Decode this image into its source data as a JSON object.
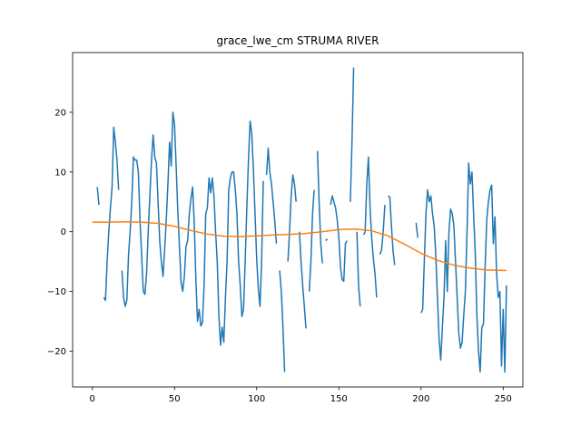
{
  "chart_data": {
    "type": "line",
    "title": "grace_lwe_cm STRUMA RIVER",
    "xlabel": "",
    "ylabel": "",
    "xlim": [
      -12,
      262
    ],
    "ylim": [
      -26,
      30
    ],
    "xticks": [
      0,
      50,
      100,
      150,
      200,
      250
    ],
    "yticks": [
      -20,
      -10,
      0,
      10,
      20
    ],
    "grid": false,
    "series": [
      {
        "color": "#1f77b4",
        "points": [
          [
            3,
            7.5
          ],
          [
            4,
            4.5
          ],
          null,
          [
            7,
            -11
          ],
          [
            8,
            -11.5
          ],
          [
            9,
            -5
          ],
          [
            10,
            0
          ],
          [
            11,
            4
          ],
          [
            12,
            7.5
          ],
          [
            13,
            17.5
          ],
          [
            14,
            15
          ],
          [
            15,
            12
          ],
          [
            16,
            7
          ],
          null,
          [
            18,
            -6.5
          ],
          [
            19,
            -11
          ],
          [
            20,
            -12.5
          ],
          [
            21,
            -11.5
          ],
          [
            22,
            -4
          ],
          [
            23,
            0
          ],
          [
            24,
            5
          ],
          [
            25,
            12.5
          ],
          [
            26,
            12
          ],
          [
            27,
            12
          ],
          [
            28,
            10
          ],
          [
            29,
            2
          ],
          [
            30,
            -4
          ],
          [
            31,
            -10
          ],
          [
            32,
            -10.5
          ],
          [
            33,
            -7
          ],
          [
            34,
            0
          ],
          [
            35,
            6
          ],
          [
            36,
            12
          ],
          [
            37,
            16.2
          ],
          [
            38,
            12.5
          ],
          [
            39,
            11.5
          ],
          [
            40,
            5
          ],
          [
            41,
            -1.5
          ],
          [
            42,
            -5
          ],
          [
            43,
            -7.5
          ],
          [
            44,
            -3
          ],
          [
            45,
            2
          ],
          [
            46,
            8
          ],
          [
            47,
            15
          ],
          [
            48,
            11
          ],
          [
            49,
            20
          ],
          [
            50,
            18
          ],
          [
            51,
            11
          ],
          [
            52,
            3.5
          ],
          [
            53,
            -2.5
          ],
          [
            54,
            -8.5
          ],
          [
            55,
            -10
          ],
          [
            56,
            -7.5
          ],
          [
            57,
            -2.5
          ],
          [
            58,
            -1.5
          ],
          [
            59,
            3
          ],
          [
            60,
            5.5
          ],
          [
            61,
            7.5
          ],
          [
            62,
            1.5
          ],
          [
            63,
            -8
          ],
          [
            64,
            -15
          ],
          [
            65,
            -13
          ],
          [
            66,
            -15.8
          ],
          [
            67,
            -15.2
          ],
          [
            68,
            -9
          ],
          [
            69,
            3
          ],
          [
            70,
            4
          ],
          [
            71,
            9
          ],
          [
            72,
            6.5
          ],
          [
            73,
            9
          ],
          [
            74,
            6
          ],
          [
            75,
            0
          ],
          [
            76,
            -5
          ],
          [
            77,
            -14
          ],
          [
            78,
            -19
          ],
          [
            79,
            -16
          ],
          [
            80,
            -18.5
          ],
          [
            81,
            -11
          ],
          [
            82,
            -5
          ],
          [
            83,
            7
          ],
          [
            84,
            9
          ],
          [
            85,
            10
          ],
          [
            86,
            10
          ],
          [
            87,
            7
          ],
          [
            88,
            3
          ],
          [
            89,
            -5
          ],
          [
            90,
            -9
          ],
          [
            91,
            -14.2
          ],
          [
            92,
            -13
          ],
          [
            93,
            -5
          ],
          [
            94,
            4
          ],
          [
            95,
            12
          ],
          [
            96,
            18.5
          ],
          [
            97,
            16.5
          ],
          [
            98,
            10.5
          ],
          [
            99,
            3
          ],
          [
            100,
            -4.5
          ],
          [
            101,
            -9.5
          ],
          [
            102,
            -12.5
          ],
          [
            103,
            -5
          ],
          [
            104,
            8.5
          ],
          null,
          [
            106,
            9.5
          ],
          [
            107,
            14
          ],
          [
            108,
            10
          ],
          [
            109,
            8
          ],
          [
            110,
            5
          ],
          [
            111,
            1.8
          ],
          [
            112,
            -2
          ],
          null,
          [
            114,
            -6.5
          ],
          [
            115,
            -10
          ],
          [
            116,
            -16
          ],
          [
            117,
            -23.5
          ],
          null,
          [
            119,
            -5
          ],
          [
            120,
            0
          ],
          [
            121,
            6
          ],
          [
            122,
            9.5
          ],
          [
            123,
            8
          ],
          [
            124,
            5
          ],
          null,
          [
            126,
            0
          ],
          [
            127,
            -5
          ],
          [
            128,
            -9
          ],
          [
            129,
            -12.5
          ],
          [
            130,
            -16.2
          ],
          null,
          [
            132,
            -10
          ],
          [
            133,
            -5
          ],
          [
            134,
            3
          ],
          [
            135,
            7
          ],
          null,
          [
            137,
            13.5
          ],
          [
            138,
            5
          ],
          [
            139,
            -2
          ],
          [
            140,
            -5.3
          ],
          null,
          [
            142,
            -1.5
          ],
          [
            143,
            -1.2
          ],
          null,
          [
            145,
            4.5
          ],
          [
            146,
            6
          ],
          [
            147,
            5
          ],
          [
            148,
            4
          ],
          [
            149,
            2
          ],
          [
            150,
            -1
          ],
          [
            151,
            -6
          ],
          [
            152,
            -8
          ],
          [
            153,
            -8.3
          ],
          [
            154,
            -2
          ],
          [
            155,
            -1.5
          ],
          null,
          [
            157,
            5
          ],
          [
            158,
            15
          ],
          [
            159,
            27.5
          ],
          null,
          [
            161,
            0
          ],
          [
            162,
            -9
          ],
          [
            163,
            -12.5
          ],
          null,
          [
            165,
            -0.5
          ],
          [
            166,
            0
          ],
          [
            167,
            8
          ],
          [
            168,
            12.5
          ],
          [
            169,
            4
          ],
          [
            170,
            -1
          ],
          [
            171,
            -4.5
          ],
          [
            172,
            -7
          ],
          [
            173,
            -11
          ],
          null,
          [
            175,
            -3.8
          ],
          [
            176,
            -3
          ],
          [
            177,
            0
          ],
          [
            178,
            4.5
          ],
          null,
          [
            180,
            6
          ],
          [
            181,
            5.8
          ],
          [
            182,
            1
          ],
          [
            183,
            -3.3
          ],
          [
            184,
            -5.6
          ],
          null,
          [
            197,
            1.5
          ],
          [
            198,
            -1
          ],
          null,
          [
            200,
            -13.6
          ],
          [
            201,
            -13
          ],
          [
            202,
            -5
          ],
          [
            203,
            3
          ],
          [
            204,
            7
          ],
          [
            205,
            5
          ],
          [
            206,
            6
          ],
          [
            207,
            3
          ],
          [
            208,
            1
          ],
          [
            209,
            -4
          ],
          [
            210,
            -11
          ],
          [
            211,
            -18
          ],
          [
            212,
            -21.5
          ],
          [
            213,
            -16
          ],
          [
            214,
            -11
          ],
          [
            215,
            -1.5
          ],
          [
            216,
            -10
          ],
          [
            217,
            0
          ],
          [
            218,
            3.8
          ],
          [
            219,
            3
          ],
          [
            220,
            1
          ],
          [
            221,
            -5
          ],
          [
            222,
            -11
          ],
          [
            223,
            -17
          ],
          [
            224,
            -19.5
          ],
          [
            225,
            -18.5
          ],
          [
            226,
            -14
          ],
          [
            227,
            -10
          ],
          [
            228,
            0
          ],
          [
            229,
            11.5
          ],
          [
            230,
            8
          ],
          [
            231,
            10
          ],
          [
            232,
            3
          ],
          [
            233,
            -3.5
          ],
          [
            234,
            -14
          ],
          [
            235,
            -20
          ],
          [
            236,
            -23.5
          ],
          [
            237,
            -16
          ],
          [
            238,
            -15.5
          ],
          [
            239,
            -6
          ],
          [
            240,
            2
          ],
          [
            241,
            5
          ],
          [
            242,
            7
          ],
          [
            243,
            7.8
          ],
          [
            244,
            -2
          ],
          [
            245,
            2.5
          ],
          [
            246,
            -7
          ],
          [
            247,
            -11
          ],
          [
            248,
            -10
          ],
          [
            249,
            -22.5
          ],
          [
            250,
            -13
          ],
          [
            251,
            -23.5
          ],
          [
            252,
            -9
          ]
        ]
      },
      {
        "color": "#ff7f0e",
        "points": [
          [
            0,
            1.6
          ],
          [
            10,
            1.6
          ],
          [
            20,
            1.65
          ],
          [
            30,
            1.6
          ],
          [
            40,
            1.4
          ],
          [
            50,
            0.9
          ],
          [
            60,
            0.2
          ],
          [
            70,
            -0.4
          ],
          [
            80,
            -0.75
          ],
          [
            90,
            -0.8
          ],
          [
            100,
            -0.7
          ],
          [
            110,
            -0.55
          ],
          [
            120,
            -0.45
          ],
          [
            130,
            -0.3
          ],
          [
            140,
            0
          ],
          [
            150,
            0.35
          ],
          [
            160,
            0.45
          ],
          [
            170,
            0.15
          ],
          [
            180,
            -0.7
          ],
          [
            190,
            -2.1
          ],
          [
            200,
            -3.6
          ],
          [
            210,
            -4.8
          ],
          [
            220,
            -5.6
          ],
          [
            230,
            -6.1
          ],
          [
            240,
            -6.4
          ],
          [
            252,
            -6.5
          ]
        ]
      }
    ]
  }
}
